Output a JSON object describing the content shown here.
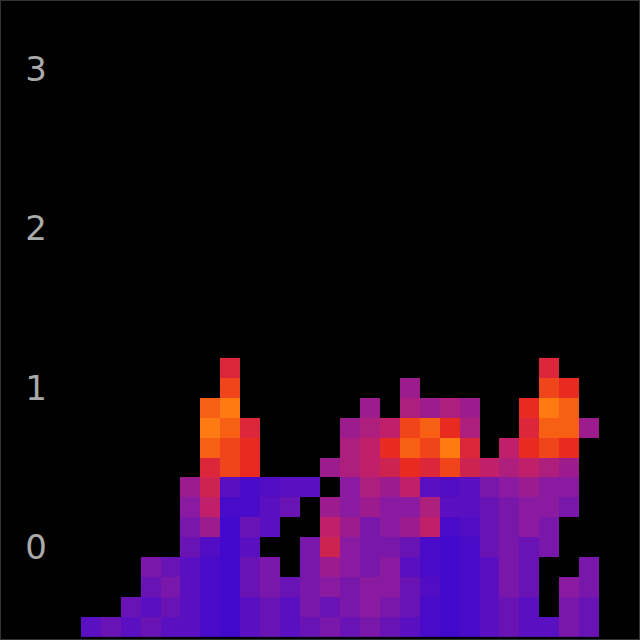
{
  "chart_data": {
    "type": "heatmap",
    "x": [
      0,
      1,
      2,
      3,
      4,
      5,
      6,
      7,
      8,
      9,
      10,
      11,
      12,
      13,
      14,
      15,
      16,
      17,
      18,
      19,
      20,
      21,
      22,
      23,
      24,
      25,
      26,
      27,
      28,
      29,
      30,
      31
    ],
    "y": [
      -0.5,
      -0.375,
      -0.25,
      -0.125,
      0,
      0.125,
      0.25,
      0.375,
      0.5,
      0.625,
      0.75,
      0.875,
      1.0,
      1.125
    ],
    "cells": [
      [
        null,
        null,
        null,
        null,
        0.3,
        0.35,
        0.3,
        0.35,
        0.3,
        0.3,
        0.2,
        0.15,
        0.3,
        0.35,
        0.3,
        0.35,
        0.4,
        0.35,
        0.4,
        0.35,
        0.3,
        0.2,
        0.15,
        0.2,
        0.3,
        0.35,
        0.3,
        0.3,
        0.4,
        0.35,
        null,
        null
      ],
      [
        null,
        null,
        null,
        null,
        null,
        null,
        0.35,
        0.3,
        0.35,
        0.3,
        0.2,
        0.15,
        0.3,
        0.35,
        0.3,
        0.4,
        0.35,
        0.4,
        0.45,
        0.4,
        0.35,
        0.2,
        0.15,
        0.2,
        0.3,
        0.35,
        0.3,
        null,
        0.4,
        0.35,
        null,
        null
      ],
      [
        null,
        null,
        null,
        null,
        null,
        null,
        null,
        0.35,
        0.4,
        0.3,
        0.2,
        0.15,
        0.35,
        0.4,
        0.35,
        0.4,
        0.45,
        0.4,
        0.45,
        0.45,
        0.35,
        0.25,
        0.15,
        0.2,
        0.3,
        0.4,
        0.35,
        null,
        0.45,
        0.4,
        null,
        null
      ],
      [
        null,
        null,
        null,
        null,
        null,
        null,
        null,
        0.4,
        0.35,
        0.3,
        0.2,
        0.15,
        0.35,
        0.4,
        null,
        0.4,
        0.5,
        0.45,
        0.4,
        0.45,
        0.3,
        0.2,
        0.15,
        0.2,
        0.3,
        0.4,
        0.35,
        null,
        null,
        0.4,
        null,
        null
      ],
      [
        null,
        null,
        null,
        null,
        null,
        null,
        null,
        null,
        null,
        0.35,
        0.25,
        0.15,
        0.3,
        null,
        null,
        0.4,
        0.65,
        0.45,
        0.4,
        0.4,
        0.35,
        0.2,
        0.15,
        0.2,
        0.35,
        0.4,
        0.35,
        0.4,
        null,
        null,
        null,
        null
      ],
      [
        null,
        null,
        null,
        null,
        null,
        null,
        null,
        null,
        null,
        0.4,
        0.5,
        0.15,
        0.35,
        0.3,
        null,
        null,
        0.6,
        0.5,
        0.4,
        0.45,
        0.5,
        0.6,
        0.2,
        0.25,
        0.35,
        0.4,
        0.45,
        0.4,
        null,
        null,
        null,
        null
      ],
      [
        null,
        null,
        null,
        null,
        null,
        null,
        null,
        null,
        null,
        0.45,
        0.6,
        0.2,
        0.2,
        0.3,
        0.35,
        null,
        0.5,
        0.45,
        0.5,
        0.45,
        0.45,
        0.55,
        0.3,
        0.3,
        0.35,
        0.4,
        0.45,
        0.45,
        0.4,
        null,
        null,
        null
      ],
      [
        null,
        null,
        null,
        null,
        null,
        null,
        null,
        null,
        null,
        0.5,
        0.65,
        0.3,
        0.2,
        0.25,
        0.3,
        0.3,
        null,
        0.45,
        0.55,
        0.5,
        0.6,
        0.3,
        0.25,
        0.3,
        0.4,
        0.45,
        0.5,
        0.45,
        0.45,
        null,
        null,
        null
      ],
      [
        null,
        null,
        null,
        null,
        null,
        null,
        null,
        null,
        null,
        null,
        0.7,
        0.8,
        0.75,
        null,
        null,
        null,
        0.5,
        0.55,
        0.6,
        0.65,
        0.75,
        0.7,
        0.8,
        0.65,
        0.6,
        0.55,
        0.6,
        0.55,
        0.5,
        null,
        null,
        null
      ],
      [
        null,
        null,
        null,
        null,
        null,
        null,
        null,
        null,
        null,
        null,
        0.85,
        0.8,
        0.75,
        null,
        null,
        null,
        null,
        0.55,
        0.6,
        0.75,
        0.85,
        0.8,
        0.9,
        0.7,
        null,
        0.6,
        0.75,
        0.8,
        0.75,
        null,
        null,
        null
      ],
      [
        null,
        null,
        null,
        null,
        null,
        null,
        null,
        null,
        null,
        null,
        0.9,
        0.85,
        0.7,
        null,
        null,
        null,
        null,
        0.5,
        0.55,
        0.6,
        0.8,
        0.85,
        0.75,
        0.55,
        null,
        null,
        0.7,
        0.85,
        0.85,
        0.5,
        null,
        null
      ],
      [
        null,
        null,
        null,
        null,
        null,
        null,
        null,
        null,
        null,
        null,
        0.85,
        0.9,
        null,
        null,
        null,
        null,
        null,
        null,
        0.5,
        null,
        0.55,
        0.5,
        0.55,
        0.5,
        null,
        null,
        0.75,
        0.9,
        0.85,
        null,
        null,
        null
      ],
      [
        null,
        null,
        null,
        null,
        null,
        null,
        null,
        null,
        null,
        null,
        null,
        0.8,
        null,
        null,
        null,
        null,
        null,
        null,
        null,
        null,
        0.5,
        null,
        null,
        null,
        null,
        null,
        null,
        0.8,
        0.75,
        null,
        null,
        null
      ],
      [
        null,
        null,
        null,
        null,
        null,
        null,
        null,
        null,
        null,
        null,
        null,
        0.7,
        null,
        null,
        null,
        null,
        null,
        null,
        null,
        null,
        null,
        null,
        null,
        null,
        null,
        null,
        null,
        0.7,
        null,
        null,
        null,
        null
      ]
    ],
    "color_range": [
      0,
      1
    ],
    "xlim": [
      -0.5,
      31.5
    ],
    "ylim": [
      -0.575,
      3.425
    ],
    "yticks": [
      0,
      1,
      2,
      3
    ],
    "tick_labels": "y",
    "grid": false
  }
}
